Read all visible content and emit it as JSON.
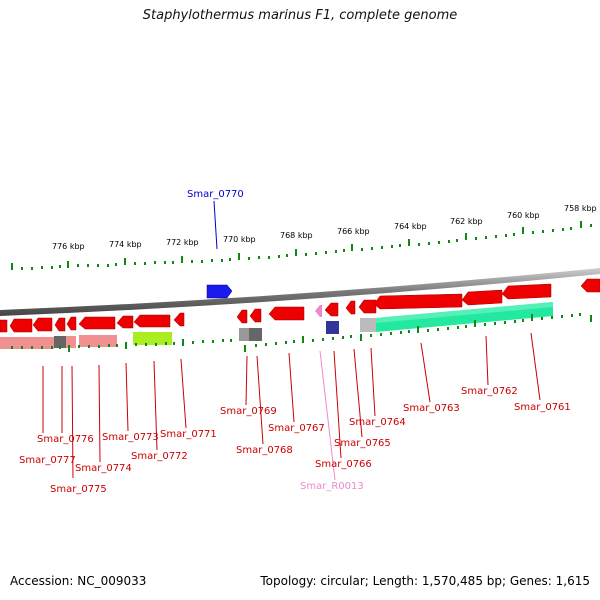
{
  "title": "Staphylothermus marinus F1, complete genome",
  "footer": {
    "accession": "Accession: NC_009033",
    "topology": "Topology: circular; Length: 1,570,485 bp; Genes: 1,615"
  },
  "scale_labels": [
    "776 kbp",
    "774 kbp",
    "772 kbp",
    "770 kbp",
    "768 kbp",
    "766 kbp",
    "764 kbp",
    "762 kbp",
    "760 kbp",
    "758 kbp"
  ],
  "gene_labels": {
    "top": "Smar_0770",
    "bottom": [
      "Smar_0776",
      "Smar_0777",
      "Smar_0775",
      "Smar_0774",
      "Smar_0773",
      "Smar_0772",
      "Smar_0771",
      "Smar_0769",
      "Smar_0768",
      "Smar_0767",
      "Smar_0766",
      "Smar_R0013",
      "Smar_0765",
      "Smar_0764",
      "Smar_0763",
      "Smar_0762",
      "Smar_0761"
    ]
  },
  "colors": {
    "forward_gene": "#0000dd",
    "reverse_gene": "#ee0000",
    "rna_gene": "#ee88cc",
    "label_red": "#cc0000",
    "label_blue": "#0000cc",
    "label_pink": "#ee88cc",
    "tick_green": "#118811",
    "backbone": "#888888"
  }
}
